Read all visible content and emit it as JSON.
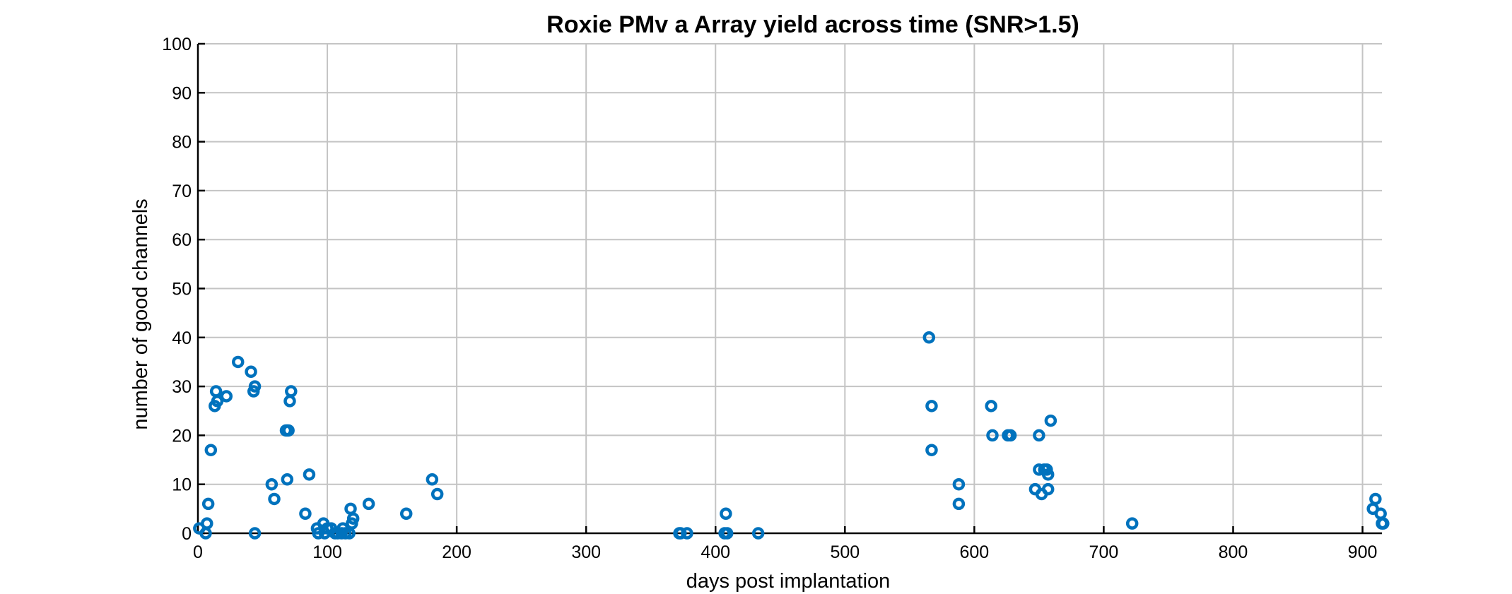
{
  "chart_data": {
    "type": "scatter",
    "title": "Roxie PMv a Array yield across time (SNR>1.5)",
    "xlabel": "days post implantation",
    "ylabel": "number of good channels",
    "xlim": [
      0,
      915
    ],
    "ylim": [
      0,
      100
    ],
    "xticks": [
      0,
      100,
      200,
      300,
      400,
      500,
      600,
      700,
      800,
      900
    ],
    "yticks": [
      0,
      10,
      20,
      30,
      40,
      50,
      60,
      70,
      80,
      90,
      100
    ],
    "grid": true,
    "marker": "circle",
    "color": "#0072BD",
    "points": [
      [
        1,
        1
      ],
      [
        6,
        0
      ],
      [
        7,
        2
      ],
      [
        8,
        6
      ],
      [
        10,
        17
      ],
      [
        13,
        26
      ],
      [
        14,
        29
      ],
      [
        15,
        27
      ],
      [
        22,
        28
      ],
      [
        31,
        35
      ],
      [
        41,
        33
      ],
      [
        43,
        29
      ],
      [
        44,
        30
      ],
      [
        44,
        0
      ],
      [
        57,
        10
      ],
      [
        59,
        7
      ],
      [
        68,
        21
      ],
      [
        69,
        21
      ],
      [
        69,
        11
      ],
      [
        70,
        21
      ],
      [
        71,
        27
      ],
      [
        72,
        29
      ],
      [
        83,
        4
      ],
      [
        86,
        12
      ],
      [
        92,
        1
      ],
      [
        93,
        0
      ],
      [
        97,
        2
      ],
      [
        98,
        0
      ],
      [
        100,
        1
      ],
      [
        103,
        1
      ],
      [
        106,
        0
      ],
      [
        108,
        0
      ],
      [
        111,
        0
      ],
      [
        112,
        1
      ],
      [
        114,
        0
      ],
      [
        117,
        0
      ],
      [
        118,
        5
      ],
      [
        119,
        2
      ],
      [
        120,
        3
      ],
      [
        132,
        6
      ],
      [
        161,
        4
      ],
      [
        181,
        11
      ],
      [
        185,
        8
      ],
      [
        372,
        0
      ],
      [
        373,
        0
      ],
      [
        378,
        0
      ],
      [
        407,
        0
      ],
      [
        408,
        4
      ],
      [
        409,
        0
      ],
      [
        433,
        0
      ],
      [
        565,
        40
      ],
      [
        567,
        26
      ],
      [
        567,
        17
      ],
      [
        588,
        10
      ],
      [
        588,
        6
      ],
      [
        613,
        26
      ],
      [
        614,
        20
      ],
      [
        626,
        20
      ],
      [
        628,
        20
      ],
      [
        647,
        9
      ],
      [
        650,
        20
      ],
      [
        650,
        13
      ],
      [
        652,
        8
      ],
      [
        654,
        13
      ],
      [
        656,
        13
      ],
      [
        657,
        12
      ],
      [
        657,
        9
      ],
      [
        659,
        23
      ],
      [
        722,
        2
      ],
      [
        908,
        5
      ],
      [
        910,
        7
      ],
      [
        914,
        4
      ],
      [
        915,
        2
      ],
      [
        916,
        2
      ]
    ]
  }
}
